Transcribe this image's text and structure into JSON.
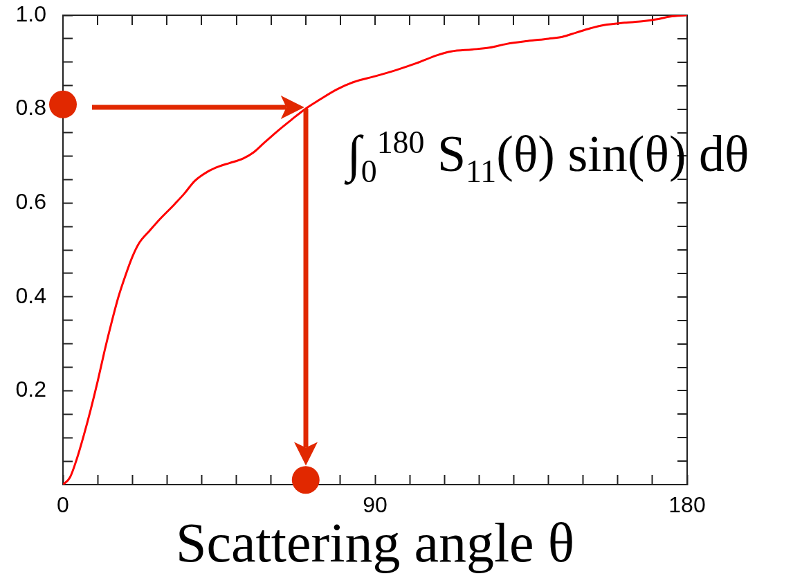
{
  "chart_data": {
    "type": "line",
    "xlabel": "Scattering angle θ",
    "annotations": [
      "∫$_{0}$$^{180}$ S$_{11}$(θ) sin(θ) dθ"
    ],
    "xlim": [
      0,
      180
    ],
    "xticks": [
      0,
      {
        "value": 10,
        "label": null
      },
      {
        "value": 20,
        "label": null
      },
      {
        "value": 30,
        "label": null
      },
      {
        "value": 40,
        "label": null
      },
      {
        "value": 50,
        "label": null
      },
      {
        "value": 60,
        "label": null
      },
      {
        "value": 70,
        "label": null
      },
      {
        "value": 80,
        "label": null
      },
      90,
      {
        "value": 100,
        "label": null
      },
      {
        "value": 110,
        "label": null
      },
      {
        "value": 120,
        "label": null
      },
      {
        "value": 130,
        "label": null
      },
      {
        "value": 140,
        "label": null
      },
      {
        "value": 150,
        "label": null
      },
      {
        "value": 160,
        "label": null
      },
      {
        "value": 170,
        "label": null
      },
      180
    ],
    "ylim": [
      0,
      1
    ],
    "yticks": [
      {
        "value": 0.05,
        "label": null
      },
      {
        "value": 0.1,
        "label": null
      },
      {
        "value": 0.15,
        "label": null
      },
      0.2,
      {
        "value": 0.25,
        "label": null
      },
      {
        "value": 0.3,
        "label": null
      },
      {
        "value": 0.35,
        "label": null
      },
      0.4,
      {
        "value": 0.45,
        "label": null
      },
      {
        "value": 0.5,
        "label": null
      },
      {
        "value": 0.55,
        "label": null
      },
      0.6,
      {
        "value": 0.65,
        "label": null
      },
      {
        "value": 0.7,
        "label": null
      },
      {
        "value": 0.75,
        "label": null
      },
      0.8,
      {
        "value": 0.85,
        "label": null
      },
      {
        "value": 0.9,
        "label": null
      },
      {
        "value": 0.95,
        "label": null
      },
      {
        "value": 1,
        "label": "1.0"
      }
    ],
    "series": [
      {
        "type": "line",
        "color": "#ff0000",
        "x": [
          0,
          2,
          4,
          6,
          8,
          10,
          12,
          14,
          16,
          18,
          20,
          22,
          25,
          28,
          32,
          35,
          38,
          42,
          45,
          48,
          52,
          55,
          58,
          62,
          66,
          70,
          74,
          79,
          84,
          90,
          96,
          102,
          108,
          112,
          118,
          123,
          128,
          134,
          140,
          144,
          148,
          152,
          156,
          162,
          167,
          171,
          175,
          180
        ],
        "values": [
          0,
          0.015,
          0.055,
          0.105,
          0.16,
          0.22,
          0.285,
          0.345,
          0.4,
          0.445,
          0.485,
          0.515,
          0.541,
          0.566,
          0.596,
          0.62,
          0.647,
          0.668,
          0.678,
          0.685,
          0.695,
          0.708,
          0.728,
          0.754,
          0.778,
          0.801,
          0.82,
          0.842,
          0.858,
          0.87,
          0.883,
          0.898,
          0.915,
          0.923,
          0.927,
          0.931,
          0.939,
          0.945,
          0.95,
          0.954,
          0.963,
          0.972,
          0.979,
          0.984,
          0.987,
          0.991,
          0.997,
          1
        ]
      },
      {
        "type": "scatter",
        "color": "#e12800",
        "marker": "circle",
        "x": [
          0,
          70
        ],
        "values": [
          0.81,
          0.01
        ]
      }
    ]
  }
}
